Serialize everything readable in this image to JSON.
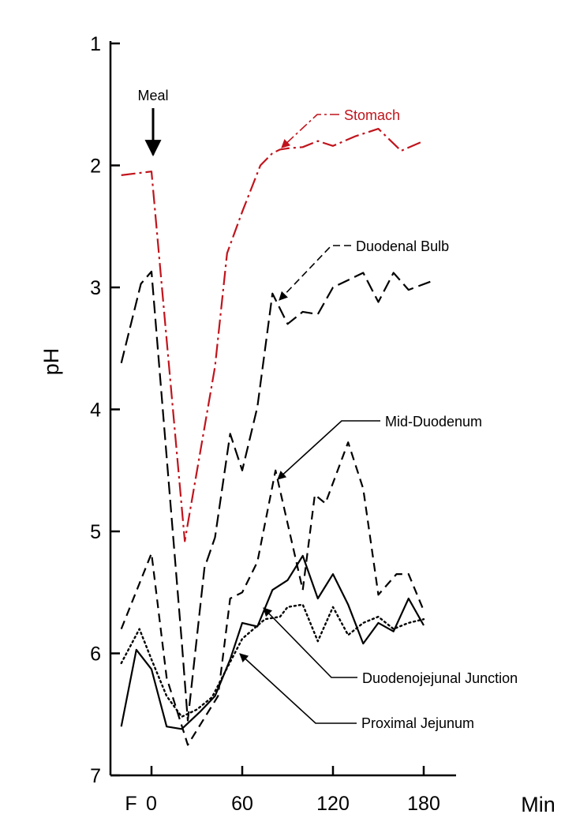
{
  "chart_data": {
    "type": "line",
    "title": "",
    "xlabel": "Min",
    "ylabel": "pH",
    "x_ticks": [
      {
        "label": "F",
        "value": -20
      },
      {
        "label": "0",
        "value": 0
      },
      {
        "label": "60",
        "value": 60
      },
      {
        "label": "120",
        "value": 120
      },
      {
        "label": "180",
        "value": 180
      }
    ],
    "y_ticks": [
      "1",
      "2",
      "3",
      "4",
      "5",
      "6",
      "7"
    ],
    "xlim": [
      -30,
      210
    ],
    "ylim": [
      1,
      7
    ],
    "y_inverted": true,
    "grid": false,
    "meal_marker": {
      "label": "Meal",
      "x": 0
    },
    "series": [
      {
        "name": "Stomach",
        "color": "#c0141c",
        "style": "dashdot",
        "points": [
          [
            -20,
            2.08
          ],
          [
            0,
            2.05
          ],
          [
            22,
            5.08
          ],
          [
            42,
            3.65
          ],
          [
            50,
            2.72
          ],
          [
            60,
            2.38
          ],
          [
            72,
            2.0
          ],
          [
            80,
            1.9
          ],
          [
            85,
            1.87
          ],
          [
            90,
            1.86
          ],
          [
            100,
            1.85
          ],
          [
            110,
            1.8
          ],
          [
            120,
            1.84
          ],
          [
            135,
            1.76
          ],
          [
            150,
            1.7
          ],
          [
            165,
            1.88
          ],
          [
            180,
            1.8
          ]
        ]
      },
      {
        "name": "Duodenal Bulb",
        "color": "#000000",
        "style": "longdash",
        "points": [
          [
            -20,
            3.62
          ],
          [
            -7,
            2.97
          ],
          [
            0,
            2.87
          ],
          [
            20,
            5.9
          ],
          [
            24,
            6.55
          ],
          [
            35,
            5.3
          ],
          [
            42,
            5.05
          ],
          [
            52,
            4.2
          ],
          [
            60,
            4.5
          ],
          [
            70,
            3.98
          ],
          [
            80,
            3.05
          ],
          [
            90,
            3.3
          ],
          [
            100,
            3.2
          ],
          [
            110,
            3.22
          ],
          [
            120,
            3.0
          ],
          [
            140,
            2.88
          ],
          [
            150,
            3.12
          ],
          [
            160,
            2.88
          ],
          [
            170,
            3.02
          ],
          [
            185,
            2.95
          ]
        ]
      },
      {
        "name": "Mid-Duodenum",
        "color": "#000000",
        "style": "dash",
        "points": [
          [
            -20,
            5.8
          ],
          [
            0,
            5.18
          ],
          [
            10,
            6.2
          ],
          [
            24,
            6.75
          ],
          [
            44,
            6.35
          ],
          [
            52,
            5.55
          ],
          [
            60,
            5.5
          ],
          [
            70,
            5.25
          ],
          [
            82,
            4.5
          ],
          [
            100,
            5.48
          ],
          [
            108,
            4.7
          ],
          [
            115,
            4.77
          ],
          [
            130,
            4.27
          ],
          [
            140,
            4.65
          ],
          [
            150,
            5.52
          ],
          [
            162,
            5.35
          ],
          [
            170,
            5.35
          ],
          [
            180,
            5.65
          ]
        ]
      },
      {
        "name": "Duodenojejunal Junction",
        "color": "#000000",
        "style": "solid",
        "points": [
          [
            -20,
            6.6
          ],
          [
            -10,
            5.97
          ],
          [
            0,
            6.13
          ],
          [
            10,
            6.6
          ],
          [
            20,
            6.62
          ],
          [
            32,
            6.48
          ],
          [
            42,
            6.35
          ],
          [
            52,
            6.05
          ],
          [
            60,
            5.75
          ],
          [
            70,
            5.78
          ],
          [
            80,
            5.48
          ],
          [
            90,
            5.4
          ],
          [
            100,
            5.2
          ],
          [
            110,
            5.55
          ],
          [
            120,
            5.35
          ],
          [
            130,
            5.6
          ],
          [
            140,
            5.92
          ],
          [
            150,
            5.75
          ],
          [
            160,
            5.82
          ],
          [
            170,
            5.55
          ],
          [
            180,
            5.77
          ]
        ]
      },
      {
        "name": "Proximal Jejunum",
        "color": "#000000",
        "style": "dot",
        "points": [
          [
            -20,
            6.08
          ],
          [
            -8,
            5.8
          ],
          [
            0,
            6.05
          ],
          [
            10,
            6.35
          ],
          [
            20,
            6.52
          ],
          [
            30,
            6.46
          ],
          [
            40,
            6.36
          ],
          [
            50,
            6.12
          ],
          [
            60,
            5.88
          ],
          [
            75,
            5.72
          ],
          [
            85,
            5.7
          ],
          [
            90,
            5.62
          ],
          [
            100,
            5.6
          ],
          [
            110,
            5.9
          ],
          [
            120,
            5.62
          ],
          [
            130,
            5.85
          ],
          [
            140,
            5.75
          ],
          [
            150,
            5.7
          ],
          [
            160,
            5.8
          ],
          [
            170,
            5.75
          ],
          [
            180,
            5.72
          ]
        ]
      }
    ],
    "annotations": [
      {
        "label": "Stomach",
        "color": "#c0141c",
        "target": [
          85,
          1.87
        ]
      },
      {
        "label": "Duodenal Bulb",
        "color": "#000000",
        "target": [
          81,
          3.15
        ]
      },
      {
        "label": "Mid-Duodenum",
        "color": "#000000",
        "target": [
          80,
          4.62
        ]
      },
      {
        "label": "Duodenojejunal Junction",
        "color": "#000000",
        "target": [
          70,
          5.62
        ]
      },
      {
        "label": "Proximal Jejunum",
        "color": "#000000",
        "target": [
          62,
          5.95
        ]
      }
    ]
  }
}
